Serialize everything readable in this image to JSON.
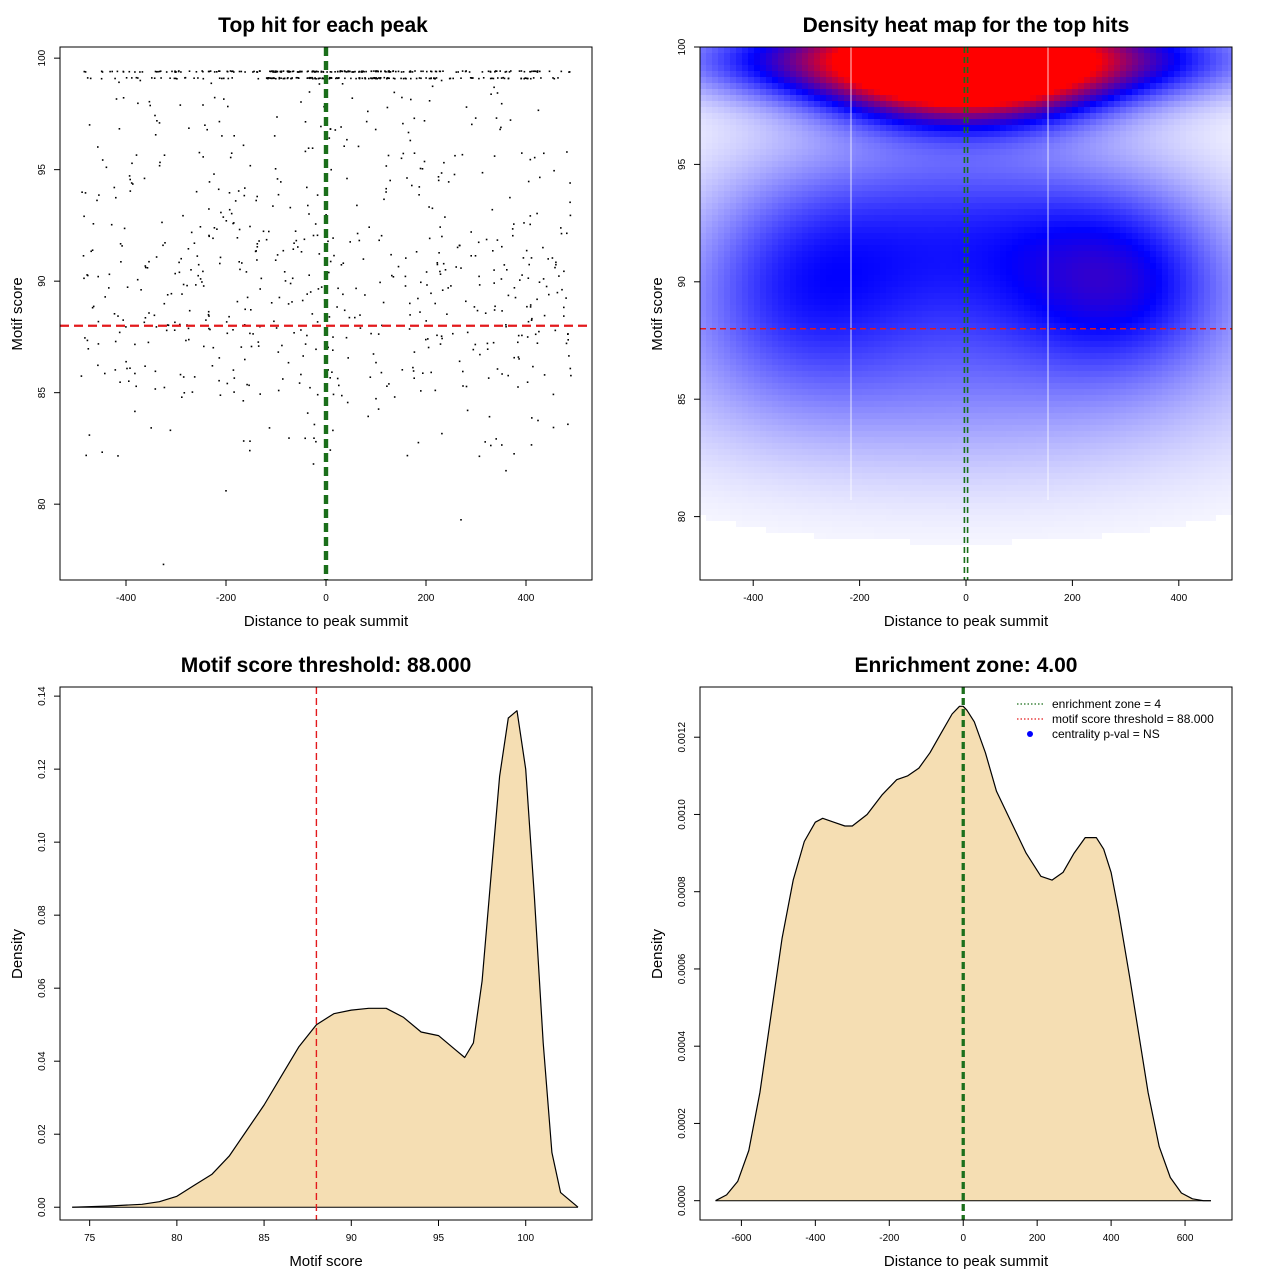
{
  "chart_data": [
    {
      "id": "scatter",
      "type": "scatter",
      "title": "Top hit for each peak",
      "xlabel": "Distance to peak summit",
      "ylabel": "Motif score",
      "xlim": [
        -532,
        532
      ],
      "ylim": [
        76.6,
        100.5
      ],
      "xticks": [
        -400,
        -200,
        0,
        200,
        400
      ],
      "yticks": [
        80,
        85,
        90,
        95,
        100
      ],
      "hline": {
        "y": 88,
        "color": "#e31a1c"
      },
      "vlines": {
        "x": [
          -2,
          2
        ],
        "color": "#1a6e1a"
      },
      "point_color": "#000000",
      "bands": [
        {
          "y": 99.4,
          "count": 210,
          "xrange": [
            -490,
            490
          ]
        },
        {
          "y": 99.1,
          "count": 170,
          "xrange": [
            -480,
            470
          ]
        }
      ],
      "scatter_count": 640,
      "outliers": [
        [
          -325,
          77.3
        ],
        [
          -200,
          80.6
        ],
        [
          270,
          79.3
        ],
        [
          -25,
          81.8
        ],
        [
          360,
          81.5
        ]
      ]
    },
    {
      "id": "heatmap",
      "type": "heatmap",
      "title": "Density heat map for the top hits",
      "xlabel": "Distance to peak summit",
      "ylabel": "Motif score",
      "xlim": [
        -500,
        500
      ],
      "ylim": [
        77.3,
        100
      ],
      "xticks": [
        -400,
        -200,
        0,
        200,
        400
      ],
      "yticks": [
        80,
        85,
        90,
        95,
        100
      ],
      "hline": {
        "y": 88,
        "color": "#e31a1c"
      },
      "vlines": {
        "x": [
          -3,
          3
        ],
        "color": "#1a6e1a"
      },
      "colors": {
        "low": "#ffffff",
        "mid": "#0000ff",
        "high": "#ff0000"
      },
      "density_peaks": [
        {
          "x": 0,
          "y": 99.3,
          "sx": 170,
          "sy": 1.6,
          "w": 1.6
        },
        {
          "x": -300,
          "y": 99.5,
          "sx": 190,
          "sy": 1.2,
          "w": 0.45
        },
        {
          "x": 300,
          "y": 99.5,
          "sx": 190,
          "sy": 1.2,
          "w": 0.45
        },
        {
          "x": 300,
          "y": 90.0,
          "sx": 140,
          "sy": 2.6,
          "w": 0.32
        },
        {
          "x": -320,
          "y": 90.0,
          "sx": 150,
          "sy": 3.2,
          "w": 0.26
        },
        {
          "x": -100,
          "y": 92.5,
          "sx": 200,
          "sy": 3.0,
          "w": 0.2
        },
        {
          "x": 150,
          "y": 92.0,
          "sx": 200,
          "sy": 3.0,
          "w": 0.18
        },
        {
          "x": 0,
          "y": 88.0,
          "sx": 420,
          "sy": 4.0,
          "w": 0.15
        },
        {
          "x": 0,
          "y": 85.5,
          "sx": 420,
          "sy": 3.0,
          "w": 0.1
        }
      ]
    },
    {
      "id": "score_density",
      "type": "area",
      "title": "Motif score threshold: 88.000",
      "xlabel": "Motif score",
      "ylabel": "Density",
      "xlim": [
        73.3,
        103.8
      ],
      "ylim": [
        -0.0035,
        0.1425
      ],
      "xticks": [
        75,
        80,
        85,
        90,
        95,
        100
      ],
      "yticks": [
        0.0,
        0.02,
        0.04,
        0.06,
        0.08,
        0.1,
        0.12,
        0.14
      ],
      "ytick_labels": [
        "0.00",
        "0.02",
        "0.04",
        "0.06",
        "0.08",
        "0.10",
        "0.12",
        "0.14"
      ],
      "fill": "#f5deb3",
      "vline": {
        "x": 88,
        "color": "#e31a1c"
      },
      "x": [
        74,
        76,
        78,
        79,
        80,
        81,
        82,
        83,
        84,
        85,
        86,
        87,
        88,
        89,
        90,
        91,
        92,
        93,
        94,
        95,
        96,
        96.5,
        97,
        97.5,
        98,
        98.5,
        99,
        99.5,
        100,
        100.5,
        101,
        101.5,
        102,
        103
      ],
      "y": [
        0.0,
        0.0003,
        0.0008,
        0.0015,
        0.003,
        0.006,
        0.009,
        0.014,
        0.021,
        0.028,
        0.036,
        0.044,
        0.05,
        0.053,
        0.054,
        0.0545,
        0.0545,
        0.052,
        0.048,
        0.047,
        0.043,
        0.041,
        0.045,
        0.062,
        0.09,
        0.118,
        0.134,
        0.136,
        0.12,
        0.085,
        0.045,
        0.015,
        0.004,
        0.0
      ]
    },
    {
      "id": "position_density",
      "type": "area",
      "title": "Enrichment zone: 4.00",
      "xlabel": "Distance to peak summit",
      "ylabel": "Density",
      "xlim": [
        -712,
        727
      ],
      "ylim": [
        -5e-05,
        0.00133
      ],
      "xticks": [
        -600,
        -400,
        -200,
        0,
        200,
        400,
        600
      ],
      "yticks": [
        0.0,
        0.0002,
        0.0004,
        0.0006,
        0.0008,
        0.001,
        0.0012
      ],
      "ytick_labels": [
        "0.0000",
        "0.0002",
        "0.0004",
        "0.0006",
        "0.0008",
        "0.0010",
        "0.0012"
      ],
      "fill": "#f5deb3",
      "vlines": {
        "x": [
          -2,
          2
        ],
        "color": "#1a6e1a"
      },
      "x": [
        -670,
        -640,
        -610,
        -580,
        -550,
        -520,
        -490,
        -460,
        -430,
        -400,
        -380,
        -350,
        -320,
        -300,
        -260,
        -220,
        -180,
        -150,
        -120,
        -90,
        -60,
        -30,
        -10,
        0,
        10,
        30,
        60,
        90,
        130,
        170,
        210,
        240,
        270,
        300,
        330,
        360,
        380,
        400,
        420,
        450,
        480,
        500,
        530,
        560,
        590,
        620,
        650,
        670
      ],
      "y": [
        0.0,
        1.5e-05,
        5e-05,
        0.00013,
        0.00028,
        0.00048,
        0.00068,
        0.00083,
        0.00093,
        0.00098,
        0.00099,
        0.00098,
        0.00097,
        0.00097,
        0.001,
        0.00105,
        0.00109,
        0.0011,
        0.00112,
        0.00116,
        0.00121,
        0.00126,
        0.00128,
        0.00128,
        0.00127,
        0.00124,
        0.00116,
        0.00106,
        0.00098,
        0.0009,
        0.00084,
        0.00083,
        0.00085,
        0.0009,
        0.00094,
        0.00094,
        0.00091,
        0.00085,
        0.00075,
        0.00058,
        0.0004,
        0.00028,
        0.00014,
        6e-05,
        2e-05,
        5e-06,
        0.0,
        0.0
      ],
      "legend": {
        "placement": "top-right",
        "entries": [
          {
            "label": "enrichment zone = 4",
            "color": "#1a6e1a",
            "style": "dotted-line"
          },
          {
            "label": "motif score threshold = 88.000",
            "color": "#e31a1c",
            "style": "dotted-line"
          },
          {
            "label": "centrality p-val = NS",
            "color": "#0000ff",
            "style": "point"
          }
        ]
      }
    }
  ]
}
